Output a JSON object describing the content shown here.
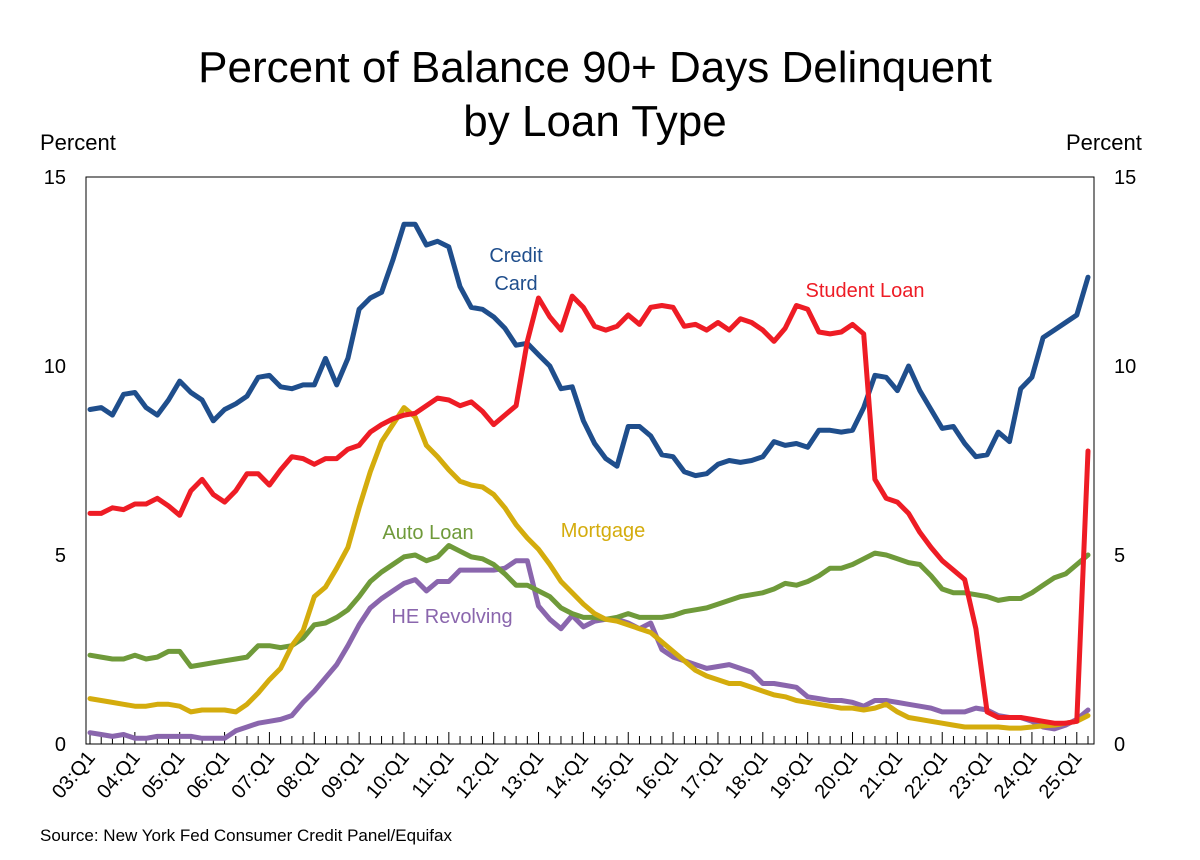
{
  "chart_data": {
    "type": "line",
    "title": "Percent of Balance 90+ Days Delinquent",
    "subtitle": "by Loan Type",
    "ylabel_left": "Percent",
    "ylabel_right": "Percent",
    "ylim": [
      0,
      15
    ],
    "yticks": [
      0,
      5,
      10,
      15
    ],
    "xlabels": [
      "03:Q1",
      "04:Q1",
      "05:Q1",
      "06:Q1",
      "07:Q1",
      "08:Q1",
      "09:Q1",
      "10:Q1",
      "11:Q1",
      "12:Q1",
      "13:Q1",
      "14:Q1",
      "15:Q1",
      "16:Q1",
      "17:Q1",
      "18:Q1",
      "19:Q1",
      "20:Q1",
      "21:Q1",
      "22:Q1",
      "23:Q1",
      "24:Q1",
      "25:Q1"
    ],
    "x_start": "2003 Q1",
    "x_end": "2025 Q1",
    "quarters_per_year": 4,
    "source": "Source: New York Fed Consumer Credit Panel/Equifax",
    "series": [
      {
        "name": "Credit Card",
        "label_lines": [
          "Credit",
          "Card"
        ],
        "color": "#1f4e8c",
        "values": [
          8.85,
          8.9,
          8.7,
          9.25,
          9.3,
          8.9,
          8.7,
          9.1,
          9.6,
          9.3,
          9.1,
          8.55,
          8.85,
          9.0,
          9.2,
          9.7,
          9.75,
          9.45,
          9.4,
          9.5,
          9.5,
          10.2,
          9.5,
          10.2,
          11.5,
          11.8,
          11.95,
          12.8,
          13.75,
          13.75,
          13.2,
          13.3,
          13.15,
          12.1,
          11.55,
          11.5,
          11.3,
          11.0,
          10.55,
          10.6,
          10.3,
          10.0,
          9.4,
          9.45,
          8.55,
          7.95,
          7.55,
          7.35,
          8.4,
          8.4,
          8.15,
          7.65,
          7.6,
          7.2,
          7.1,
          7.15,
          7.4,
          7.5,
          7.45,
          7.5,
          7.6,
          8.0,
          7.9,
          7.95,
          7.85,
          8.3,
          8.3,
          8.25,
          8.3,
          8.9,
          9.75,
          9.7,
          9.35,
          10.0,
          9.35,
          8.85,
          8.35,
          8.4,
          7.95,
          7.6,
          7.65,
          8.25,
          8.0,
          9.4,
          9.7,
          10.75,
          10.95,
          11.15,
          11.35,
          12.35
        ]
      },
      {
        "name": "Student Loan",
        "color": "#ee1c25",
        "values": [
          6.1,
          6.1,
          6.25,
          6.2,
          6.35,
          6.35,
          6.5,
          6.3,
          6.05,
          6.7,
          7.0,
          6.6,
          6.4,
          6.7,
          7.15,
          7.15,
          6.85,
          7.25,
          7.6,
          7.55,
          7.4,
          7.55,
          7.55,
          7.8,
          7.9,
          8.25,
          8.45,
          8.6,
          8.7,
          8.75,
          8.95,
          9.15,
          9.1,
          8.95,
          9.05,
          8.8,
          8.45,
          8.7,
          8.95,
          10.65,
          11.8,
          11.3,
          10.95,
          11.85,
          11.55,
          11.05,
          10.95,
          11.05,
          11.35,
          11.1,
          11.55,
          11.6,
          11.55,
          11.05,
          11.1,
          10.95,
          11.15,
          10.95,
          11.25,
          11.15,
          10.95,
          10.65,
          11.0,
          11.6,
          11.5,
          10.9,
          10.85,
          10.9,
          11.1,
          10.85,
          7.0,
          6.5,
          6.4,
          6.1,
          5.6,
          5.2,
          4.85,
          4.6,
          4.35,
          3.05,
          0.85,
          0.7,
          0.7,
          0.7,
          0.65,
          0.6,
          0.55,
          0.55,
          0.6,
          7.75
        ]
      },
      {
        "name": "Mortgage",
        "color": "#d4ac0d",
        "values": [
          1.2,
          1.15,
          1.1,
          1.05,
          1.0,
          1.0,
          1.05,
          1.05,
          1.0,
          0.85,
          0.9,
          0.9,
          0.9,
          0.85,
          1.05,
          1.35,
          1.7,
          2.0,
          2.6,
          3.0,
          3.9,
          4.15,
          4.65,
          5.2,
          6.25,
          7.2,
          8.0,
          8.45,
          8.9,
          8.65,
          7.9,
          7.6,
          7.25,
          6.95,
          6.85,
          6.8,
          6.6,
          6.25,
          5.8,
          5.45,
          5.15,
          4.75,
          4.3,
          4.0,
          3.7,
          3.45,
          3.3,
          3.25,
          3.15,
          3.05,
          2.95,
          2.7,
          2.45,
          2.2,
          1.95,
          1.8,
          1.7,
          1.6,
          1.6,
          1.5,
          1.4,
          1.3,
          1.25,
          1.15,
          1.1,
          1.05,
          1.0,
          0.95,
          0.95,
          0.9,
          0.95,
          1.05,
          0.85,
          0.7,
          0.65,
          0.6,
          0.55,
          0.5,
          0.45,
          0.45,
          0.45,
          0.45,
          0.42,
          0.42,
          0.45,
          0.48,
          0.5,
          0.55,
          0.6,
          0.75
        ]
      },
      {
        "name": "Auto Loan",
        "color": "#6f9a3a",
        "values": [
          2.35,
          2.3,
          2.25,
          2.25,
          2.35,
          2.25,
          2.3,
          2.45,
          2.45,
          2.05,
          2.1,
          2.15,
          2.2,
          2.25,
          2.3,
          2.6,
          2.6,
          2.55,
          2.6,
          2.8,
          3.15,
          3.2,
          3.35,
          3.55,
          3.9,
          4.3,
          4.55,
          4.75,
          4.95,
          5.0,
          4.85,
          4.95,
          5.25,
          5.1,
          4.95,
          4.9,
          4.75,
          4.5,
          4.2,
          4.2,
          4.05,
          3.9,
          3.6,
          3.45,
          3.35,
          3.35,
          3.3,
          3.35,
          3.45,
          3.35,
          3.35,
          3.35,
          3.4,
          3.5,
          3.55,
          3.6,
          3.7,
          3.8,
          3.9,
          3.95,
          4.0,
          4.1,
          4.25,
          4.2,
          4.3,
          4.45,
          4.65,
          4.65,
          4.75,
          4.9,
          5.05,
          5.0,
          4.9,
          4.8,
          4.75,
          4.45,
          4.1,
          4.0,
          4.0,
          3.95,
          3.9,
          3.8,
          3.85,
          3.85,
          4.0,
          4.2,
          4.4,
          4.5,
          4.75,
          5.0
        ]
      },
      {
        "name": "HE Revolving",
        "color": "#8a66ad",
        "values": [
          0.3,
          0.25,
          0.2,
          0.25,
          0.15,
          0.15,
          0.2,
          0.2,
          0.2,
          0.2,
          0.15,
          0.15,
          0.15,
          0.35,
          0.45,
          0.55,
          0.6,
          0.65,
          0.75,
          1.1,
          1.4,
          1.75,
          2.1,
          2.6,
          3.15,
          3.6,
          3.85,
          4.05,
          4.25,
          4.35,
          4.05,
          4.3,
          4.3,
          4.6,
          4.6,
          4.6,
          4.6,
          4.65,
          4.85,
          4.85,
          3.65,
          3.3,
          3.05,
          3.4,
          3.1,
          3.25,
          3.3,
          3.3,
          3.2,
          3.05,
          3.2,
          2.5,
          2.3,
          2.2,
          2.1,
          2.0,
          2.05,
          2.1,
          2.0,
          1.9,
          1.6,
          1.6,
          1.55,
          1.5,
          1.25,
          1.2,
          1.15,
          1.15,
          1.1,
          1.0,
          1.15,
          1.15,
          1.1,
          1.05,
          1.0,
          0.95,
          0.85,
          0.85,
          0.85,
          0.95,
          0.9,
          0.75,
          0.7,
          0.7,
          0.6,
          0.45,
          0.4,
          0.5,
          0.65,
          0.9
        ]
      }
    ]
  }
}
